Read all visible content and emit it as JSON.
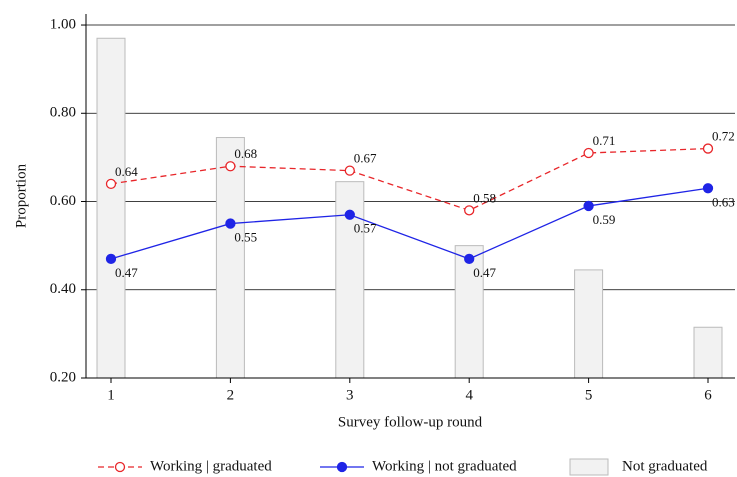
{
  "chart_data": {
    "type": "combo",
    "x_label": "Survey follow-up round",
    "y_label": "Proportion",
    "categories": [
      "1",
      "2",
      "3",
      "4",
      "5",
      "6"
    ],
    "series": [
      {
        "name": "Working | graduated",
        "type": "line",
        "style": "dashed",
        "marker": "hollow",
        "color": "#e8262a",
        "values": [
          0.64,
          0.68,
          0.67,
          0.58,
          0.71,
          0.72
        ]
      },
      {
        "name": "Working | not graduated",
        "type": "line",
        "style": "solid",
        "marker": "filled",
        "color": "#1f24e6",
        "values": [
          0.47,
          0.55,
          0.57,
          0.47,
          0.59,
          0.63
        ]
      },
      {
        "name": "Not graduated",
        "type": "bar",
        "color": "#f2f2f2",
        "values": [
          0.97,
          0.745,
          0.645,
          0.5,
          0.445,
          0.315
        ]
      }
    ],
    "ylim": [
      0.2,
      1.025
    ],
    "yticks": [
      {
        "value": 0.2,
        "label": "0.20"
      },
      {
        "value": 0.4,
        "label": "0.40"
      },
      {
        "value": 0.6,
        "label": "0.60"
      },
      {
        "value": 0.8,
        "label": "0.80"
      },
      {
        "value": 1.0,
        "label": "1.00"
      }
    ],
    "grid": true,
    "legend": "bottom"
  }
}
